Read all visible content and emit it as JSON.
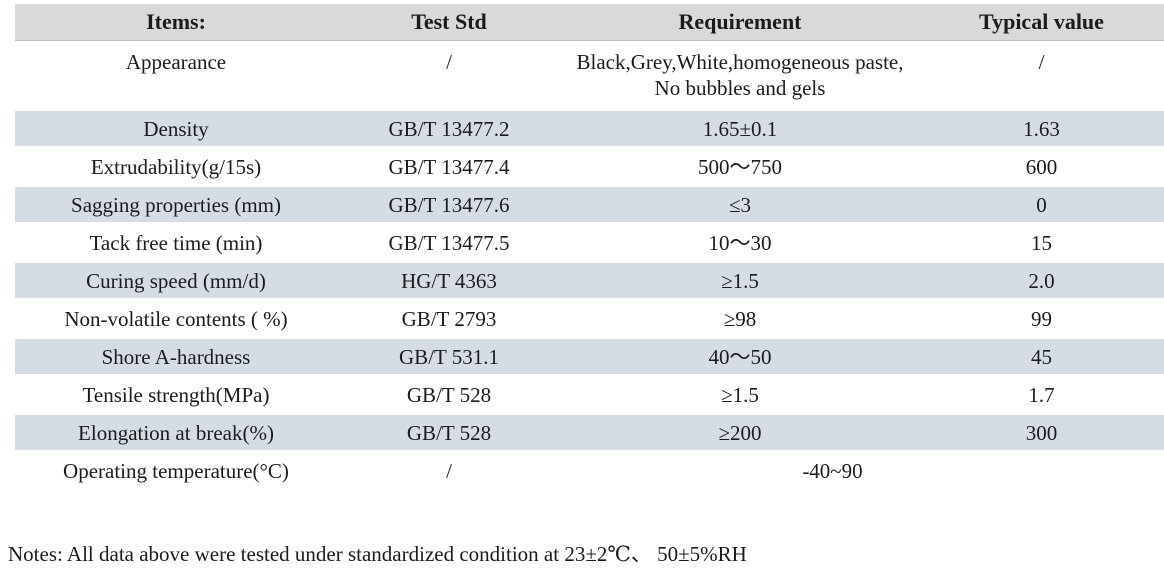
{
  "colors": {
    "header_bg": "#d9d9d9",
    "row_alt_bg": "#d5dce6",
    "text": "#1b1b1b"
  },
  "table": {
    "columns": [
      {
        "label": "Items:"
      },
      {
        "label": "Test Std"
      },
      {
        "label": "Requirement"
      },
      {
        "label": "Typical value"
      }
    ],
    "rows": [
      {
        "item": "Appearance",
        "test_std": "/",
        "requirement": "Black,Grey,White,homogeneous paste, No bubbles and gels",
        "typical_value": "/"
      },
      {
        "item": "Density",
        "test_std": "GB/T 13477.2",
        "requirement": "1.65±0.1",
        "typical_value": "1.63"
      },
      {
        "item": "Extrudability(g/15s)",
        "test_std": "GB/T 13477.4",
        "requirement": "500～750",
        "typical_value": "600"
      },
      {
        "item": "Sagging properties (mm)",
        "test_std": "GB/T 13477.6",
        "requirement": "≤3",
        "typical_value": "0"
      },
      {
        "item": "Tack free time (min)",
        "test_std": "GB/T 13477.5",
        "requirement": "10～30",
        "typical_value": "15"
      },
      {
        "item": "Curing speed (mm/d)",
        "test_std": "HG/T 4363",
        "requirement": "≥1.5",
        "typical_value": "2.0"
      },
      {
        "item": "Non-volatile contents ( %)",
        "test_std": "GB/T 2793",
        "requirement": "≥98",
        "typical_value": "99"
      },
      {
        "item": "Shore A-hardness",
        "test_std": "GB/T 531.1",
        "requirement": "40～50",
        "typical_value": "45"
      },
      {
        "item": "Tensile strength(MPa)",
        "test_std": "GB/T 528",
        "requirement": "≥1.5",
        "typical_value": "1.7"
      },
      {
        "item": "Elongation at break(%)",
        "test_std": "GB/T 528",
        "requirement": "≥200",
        "typical_value": "300"
      },
      {
        "item": "Operating temperature(°C)",
        "test_std": "/",
        "requirement": "-40~90"
      }
    ]
  },
  "notes": {
    "text": "Notes: All data above were tested under standardized condition at 23±2℃、 50±5%RH"
  }
}
